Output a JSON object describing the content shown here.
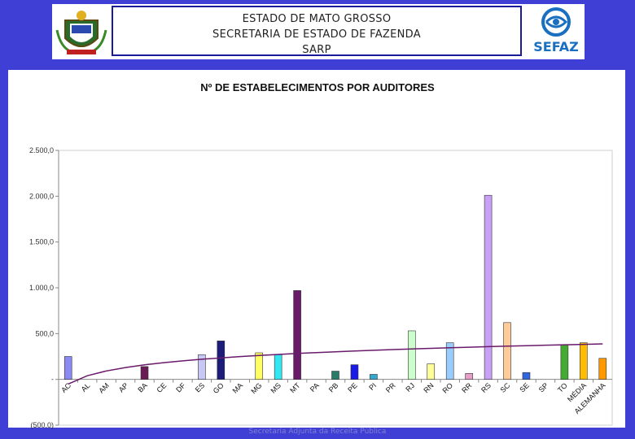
{
  "header": {
    "line1": "ESTADO DE MATO GROSSO",
    "line2": "SECRETARIA DE ESTADO DE FAZENDA",
    "line3": "SARP",
    "logo_text": "SEFAZ"
  },
  "colors": {
    "background": "#3f3fd6",
    "trend_line": "#6a1a6a"
  },
  "chart_data": {
    "type": "bar",
    "title": "Nº DE ESTABELECIMENTOS POR AUDITORES",
    "xlabel": "",
    "ylabel": "",
    "ylim": [
      -500,
      2500
    ],
    "yticks": [
      -500,
      0,
      500,
      1000,
      1500,
      2000,
      2500
    ],
    "ytick_labels": [
      "(500,0)",
      "-",
      "500,0",
      "1.000,0",
      "1.500,0",
      "2.000,0",
      "2.500,0"
    ],
    "grid": false,
    "categories": [
      "AC",
      "AL",
      "AM",
      "AP",
      "BA",
      "CE",
      "DF",
      "ES",
      "GO",
      "MA",
      "MG",
      "MS",
      "MT",
      "PA",
      "PB",
      "PE",
      "PI",
      "PR",
      "RJ",
      "RN",
      "RO",
      "RR",
      "RS",
      "SC",
      "SE",
      "SP",
      "TO",
      "MÉDIA",
      "ALEMANHA"
    ],
    "values": [
      250,
      0,
      0,
      0,
      140,
      0,
      0,
      270,
      420,
      0,
      290,
      270,
      970,
      0,
      90,
      160,
      55,
      0,
      530,
      170,
      400,
      65,
      2010,
      620,
      75,
      0,
      380,
      400,
      230
    ],
    "bar_colors": [
      "#8a8af0",
      "#ffffff",
      "#ffffff",
      "#ffffff",
      "#6a1a55",
      "#ffffff",
      "#ffffff",
      "#c8c8f5",
      "#1c1c7a",
      "#ffffff",
      "#ffff66",
      "#33e6f0",
      "#6a1a6a",
      "#ffffff",
      "#2a7a6a",
      "#1a1ae6",
      "#33aacc",
      "#ffffff",
      "#ccffcc",
      "#ffff99",
      "#99ccff",
      "#e6a0c8",
      "#c8a0f5",
      "#ffcc99",
      "#3366dd",
      "#ffffff",
      "#44aa33",
      "#ffbb00",
      "#ff9900"
    ],
    "trendline": {
      "type": "logarithmic",
      "color": "#6a1a6a"
    }
  },
  "footer": {
    "text": "Secretaria Adjunta da Receita Pública"
  }
}
